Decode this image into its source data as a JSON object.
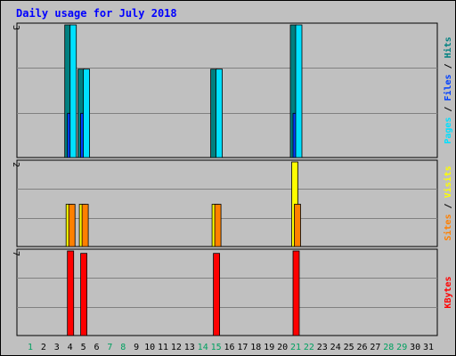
{
  "chart_data": {
    "type": "bar",
    "title": "Daily usage for July 2018",
    "days": [
      "1",
      "2",
      "3",
      "4",
      "5",
      "6",
      "7",
      "8",
      "9",
      "10",
      "11",
      "12",
      "13",
      "14",
      "15",
      "16",
      "17",
      "18",
      "19",
      "20",
      "21",
      "22",
      "23",
      "24",
      "25",
      "26",
      "27",
      "28",
      "29",
      "30",
      "31"
    ],
    "weekend_days": [
      1,
      7,
      8,
      14,
      15,
      21,
      22,
      28,
      29
    ],
    "panels": [
      {
        "name": "hits-files-pages",
        "ymax": 3,
        "ymax_label": "3",
        "ylabel_parts": [
          "Pages",
          " / ",
          "Files",
          " / ",
          "Hits"
        ],
        "ylabel_colors": [
          "#00e0ff",
          "#000000",
          "#0040ff",
          "#000000",
          "#008080"
        ],
        "series": [
          {
            "name": "Hits",
            "color": "#008080",
            "values": [
              0,
              0,
              0,
              3,
              2,
              0,
              0,
              0,
              0,
              0,
              0,
              0,
              0,
              0,
              2,
              0,
              0,
              0,
              0,
              0,
              3,
              0,
              0,
              0,
              0,
              0,
              0,
              0,
              0,
              0,
              0
            ]
          },
          {
            "name": "Files",
            "color": "#0040ff",
            "values": [
              0,
              0,
              0,
              1,
              1,
              0,
              0,
              0,
              0,
              0,
              0,
              0,
              0,
              0,
              0,
              0,
              0,
              0,
              0,
              0,
              1,
              0,
              0,
              0,
              0,
              0,
              0,
              0,
              0,
              0,
              0
            ]
          },
          {
            "name": "Pages",
            "color": "#00e0ff",
            "values": [
              0,
              0,
              0,
              3,
              2,
              0,
              0,
              0,
              0,
              0,
              0,
              0,
              0,
              0,
              2,
              0,
              0,
              0,
              0,
              0,
              3,
              0,
              0,
              0,
              0,
              0,
              0,
              0,
              0,
              0,
              0
            ]
          }
        ]
      },
      {
        "name": "visits-sites",
        "ymax": 2,
        "ymax_label": "2",
        "ylabel_parts": [
          "Sites",
          " / ",
          "Visits"
        ],
        "ylabel_colors": [
          "#ff8000",
          "#000000",
          "#ffff00"
        ],
        "series": [
          {
            "name": "Visits",
            "color": "#ffff00",
            "values": [
              0,
              0,
              0,
              1,
              1,
              0,
              0,
              0,
              0,
              0,
              0,
              0,
              0,
              0,
              1,
              0,
              0,
              0,
              0,
              0,
              2,
              0,
              0,
              0,
              0,
              0,
              0,
              0,
              0,
              0,
              0
            ]
          },
          {
            "name": "Sites",
            "color": "#ff8000",
            "values": [
              0,
              0,
              0,
              1,
              1,
              0,
              0,
              0,
              0,
              0,
              0,
              0,
              0,
              0,
              1,
              0,
              0,
              0,
              0,
              0,
              1,
              0,
              0,
              0,
              0,
              0,
              0,
              0,
              0,
              0,
              0
            ]
          }
        ]
      },
      {
        "name": "kbytes",
        "ymax": 7,
        "ymax_label": "7",
        "ylabel_parts": [
          "KBytes"
        ],
        "ylabel_colors": [
          "#ff0000"
        ],
        "series": [
          {
            "name": "KBytes",
            "color": "#ff0000",
            "values": [
              0,
              0,
              0,
              7,
              6.8,
              0,
              0,
              0,
              0,
              0,
              0,
              0,
              0,
              0,
              6.8,
              0,
              0,
              0,
              0,
              0,
              7,
              0,
              0,
              0,
              0,
              0,
              0,
              0,
              0,
              0,
              0
            ]
          }
        ]
      }
    ],
    "colors": {
      "background": "#c0c0c0",
      "grid": "#808080",
      "title": "#0000ff",
      "weekday_label": "#000000",
      "weekend_label": "#00a060"
    }
  }
}
